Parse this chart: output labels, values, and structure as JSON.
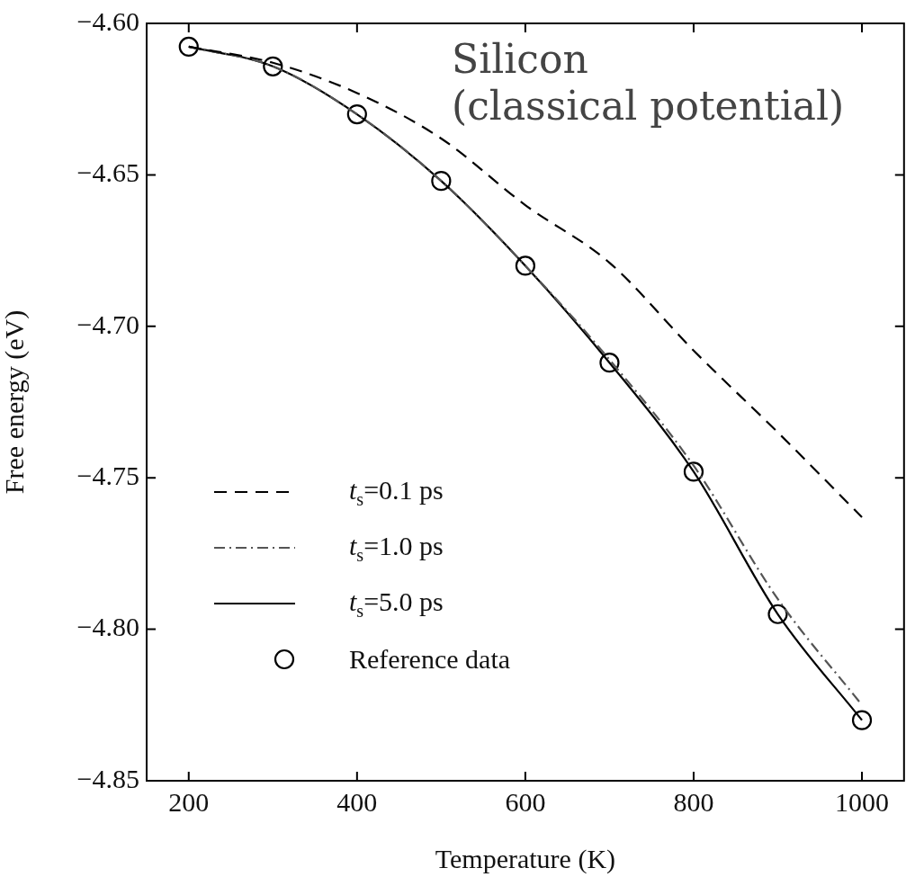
{
  "chart_data": {
    "type": "line",
    "xlabel": "Temperature (K)",
    "ylabel": "Free energy (eV)",
    "annotations": [
      "Silicon\n(classical potential)"
    ],
    "x": [
      200,
      300,
      400,
      500,
      600,
      700,
      800,
      900,
      1000
    ],
    "series": [
      {
        "name": "t$_{s}$=0.1 ps",
        "color": "#000000",
        "line_style": "dashed",
        "marker": "none",
        "values": [
          -4.6077,
          -4.613,
          -4.623,
          -4.638,
          -4.66,
          -4.679,
          -4.708,
          -4.735,
          -4.763
        ]
      },
      {
        "name": "t$_{s}$=1.0 ps",
        "color": "#555555",
        "line_style": "dashdot",
        "marker": "none",
        "values": [
          -4.6077,
          -4.6142,
          -4.63,
          -4.652,
          -4.68,
          -4.711,
          -4.746,
          -4.79,
          -4.825
        ]
      },
      {
        "name": "t$_{s}$=5.0 ps",
        "color": "#000000",
        "line_style": "solid",
        "marker": "none",
        "values": [
          -4.6077,
          -4.6142,
          -4.63,
          -4.652,
          -4.68,
          -4.712,
          -4.748,
          -4.795,
          -4.83
        ]
      },
      {
        "name": "Reference data",
        "type": "scatter",
        "color": "#000000",
        "marker": "circle",
        "values": [
          -4.6077,
          -4.6142,
          -4.63,
          -4.652,
          -4.68,
          -4.712,
          -4.748,
          -4.795,
          -4.83
        ]
      }
    ],
    "xlim": [
      150,
      1050
    ],
    "xticks": [
      200,
      400,
      600,
      800,
      1000
    ],
    "ylim": [
      -4.85,
      -4.6
    ],
    "yticks": [
      {
        "value": -4.85,
        "label": "−4.85"
      },
      {
        "value": -4.8,
        "label": "−4.80"
      },
      {
        "value": -4.75,
        "label": "−4.75"
      },
      {
        "value": -4.7,
        "label": "−4.70"
      },
      {
        "value": -4.65,
        "label": "−4.65"
      },
      {
        "value": -4.6,
        "label": "−4.60"
      }
    ],
    "grid": false,
    "legend": "bottom left"
  }
}
